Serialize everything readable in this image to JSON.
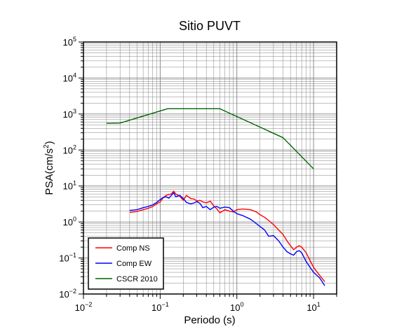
{
  "colors": {
    "ns": "#ff0000",
    "ew": "#0000ff",
    "cscr": "#006400",
    "grid": "#808080",
    "frame": "#000000"
  },
  "chart_data": {
    "type": "line",
    "title": "Sitio PUVT",
    "xlabel": "Periodo (s)",
    "ylabel_main": "PSA(cm/s",
    "ylabel_sup": "2",
    "ylabel_close": ")",
    "xscale": "log",
    "yscale": "log",
    "xlim": [
      0.01,
      20
    ],
    "ylim": [
      0.01,
      100000
    ],
    "grid": true,
    "legend_position": "bottom-left",
    "xticks": [
      {
        "value": 0.01,
        "base": "10",
        "exp": "−2"
      },
      {
        "value": 0.1,
        "base": "10",
        "exp": "−1"
      },
      {
        "value": 1,
        "base": "10",
        "exp": "0"
      },
      {
        "value": 10,
        "base": "10",
        "exp": "1"
      }
    ],
    "yticks": [
      {
        "value": 0.01,
        "base": "10",
        "exp": "−2"
      },
      {
        "value": 0.1,
        "base": "10",
        "exp": "−1"
      },
      {
        "value": 1,
        "base": "10",
        "exp": "0"
      },
      {
        "value": 10,
        "base": "10",
        "exp": "1"
      },
      {
        "value": 100,
        "base": "10",
        "exp": "2"
      },
      {
        "value": 1000,
        "base": "10",
        "exp": "3"
      },
      {
        "value": 10000,
        "base": "10",
        "exp": "4"
      },
      {
        "value": 100000,
        "base": "10",
        "exp": "5"
      }
    ],
    "series": [
      {
        "name": "Comp NS",
        "color": "#ff0000",
        "x": [
          0.04,
          0.05,
          0.06,
          0.07,
          0.08,
          0.09,
          0.1,
          0.11,
          0.12,
          0.13,
          0.14,
          0.15,
          0.16,
          0.18,
          0.2,
          0.22,
          0.25,
          0.28,
          0.3,
          0.33,
          0.36,
          0.4,
          0.45,
          0.5,
          0.55,
          0.6,
          0.7,
          0.8,
          0.9,
          1.0,
          1.2,
          1.5,
          1.8,
          2.0,
          2.3,
          2.6,
          3.0,
          3.5,
          4.0,
          4.5,
          5.0,
          5.5,
          6.0,
          6.5,
          7.0,
          8.0,
          9.0,
          10.0,
          12.0,
          14.0
        ],
        "y": [
          1.85,
          1.95,
          2.2,
          2.4,
          2.7,
          3.2,
          3.6,
          4.8,
          5.5,
          5.8,
          6.0,
          7.2,
          6.0,
          5.2,
          4.0,
          5.5,
          4.5,
          4.3,
          3.8,
          4.0,
          3.6,
          3.4,
          3.8,
          2.8,
          2.3,
          1.8,
          2.2,
          2.0,
          1.9,
          2.2,
          2.3,
          2.2,
          1.9,
          1.6,
          1.35,
          1.1,
          0.85,
          0.6,
          0.45,
          0.3,
          0.22,
          0.17,
          0.2,
          0.22,
          0.2,
          0.14,
          0.085,
          0.055,
          0.033,
          0.022
        ]
      },
      {
        "name": "Comp EW",
        "color": "#0000ff",
        "x": [
          0.04,
          0.05,
          0.06,
          0.07,
          0.08,
          0.09,
          0.1,
          0.11,
          0.12,
          0.13,
          0.14,
          0.15,
          0.16,
          0.18,
          0.2,
          0.22,
          0.25,
          0.28,
          0.3,
          0.33,
          0.36,
          0.4,
          0.45,
          0.5,
          0.55,
          0.6,
          0.7,
          0.8,
          0.9,
          1.0,
          1.2,
          1.5,
          1.8,
          2.0,
          2.3,
          2.6,
          3.0,
          3.5,
          4.0,
          4.5,
          5.0,
          5.5,
          6.0,
          6.5,
          7.0,
          8.0,
          9.0,
          10.0,
          12.0,
          14.0
        ],
        "y": [
          2.1,
          2.2,
          2.5,
          2.7,
          3.0,
          3.5,
          4.2,
          4.8,
          5.0,
          4.6,
          5.5,
          6.5,
          5.0,
          5.5,
          4.5,
          3.5,
          3.2,
          3.4,
          3.7,
          3.3,
          2.5,
          2.7,
          2.2,
          2.6,
          2.7,
          2.4,
          2.6,
          2.5,
          2.0,
          1.7,
          1.5,
          1.2,
          0.9,
          0.75,
          0.6,
          0.4,
          0.42,
          0.3,
          0.2,
          0.15,
          0.13,
          0.12,
          0.15,
          0.16,
          0.14,
          0.08,
          0.055,
          0.04,
          0.028,
          0.017
        ]
      },
      {
        "name": "CSCR 2010",
        "color": "#006400",
        "x": [
          0.02,
          0.03,
          0.125,
          0.6,
          4.0,
          10.0
        ],
        "y": [
          550,
          560,
          1400,
          1400,
          220,
          30
        ]
      }
    ]
  }
}
